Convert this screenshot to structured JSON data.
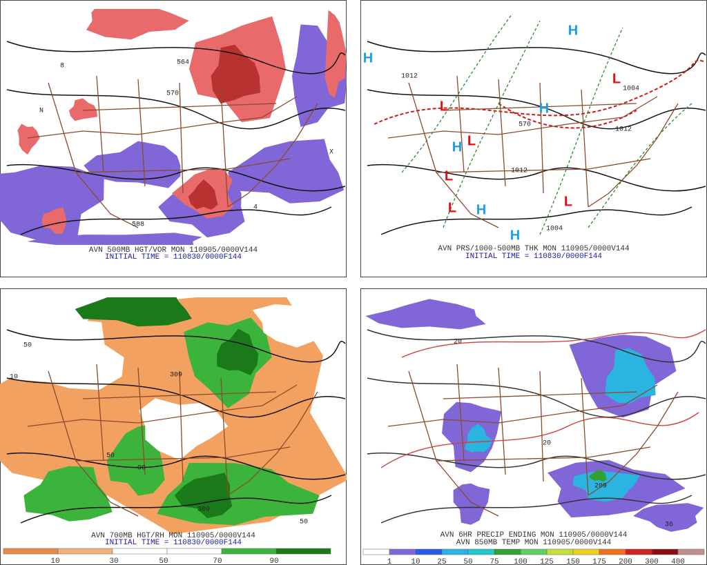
{
  "panels": [
    {
      "caption": "AVN 500MB HGT/VOR MON 110905/0000V144",
      "initial_time": "INITIAL TIME = 110830/0000F144",
      "map_labels": [
        "588",
        "570",
        "564",
        "N",
        "X",
        "4",
        "8"
      ]
    },
    {
      "caption": "AVN PRS/1000-500MB THK MON 110905/0000V144",
      "initial_time": "INITIAL TIME = 110830/0000F144",
      "map_labels": [
        "H",
        "H",
        "H",
        "H",
        "H",
        "H",
        "L",
        "L",
        "L",
        "L",
        "L",
        "L",
        "1012",
        "1012",
        "1004",
        "1004",
        "1012",
        "570"
      ]
    },
    {
      "caption": "AVN 700MB HGT/RH MON 110905/0000V144",
      "initial_time": "INITIAL TIME = 110830/0000F144",
      "map_labels": [
        "309",
        "10",
        "50",
        "50",
        "309",
        "90",
        "50"
      ],
      "colorbar": [
        10,
        30,
        50,
        70,
        90
      ]
    },
    {
      "caption": "AVN 6HR PRECIP ENDING MON 110905/0000V144",
      "caption2": "AVN 850MB TEMP MON 110905/0000V144",
      "map_labels": [
        "20",
        "36",
        "209",
        "20"
      ],
      "colorbar": [
        1,
        10,
        25,
        50,
        75,
        100,
        125,
        150,
        175,
        200,
        300,
        400
      ]
    }
  ]
}
